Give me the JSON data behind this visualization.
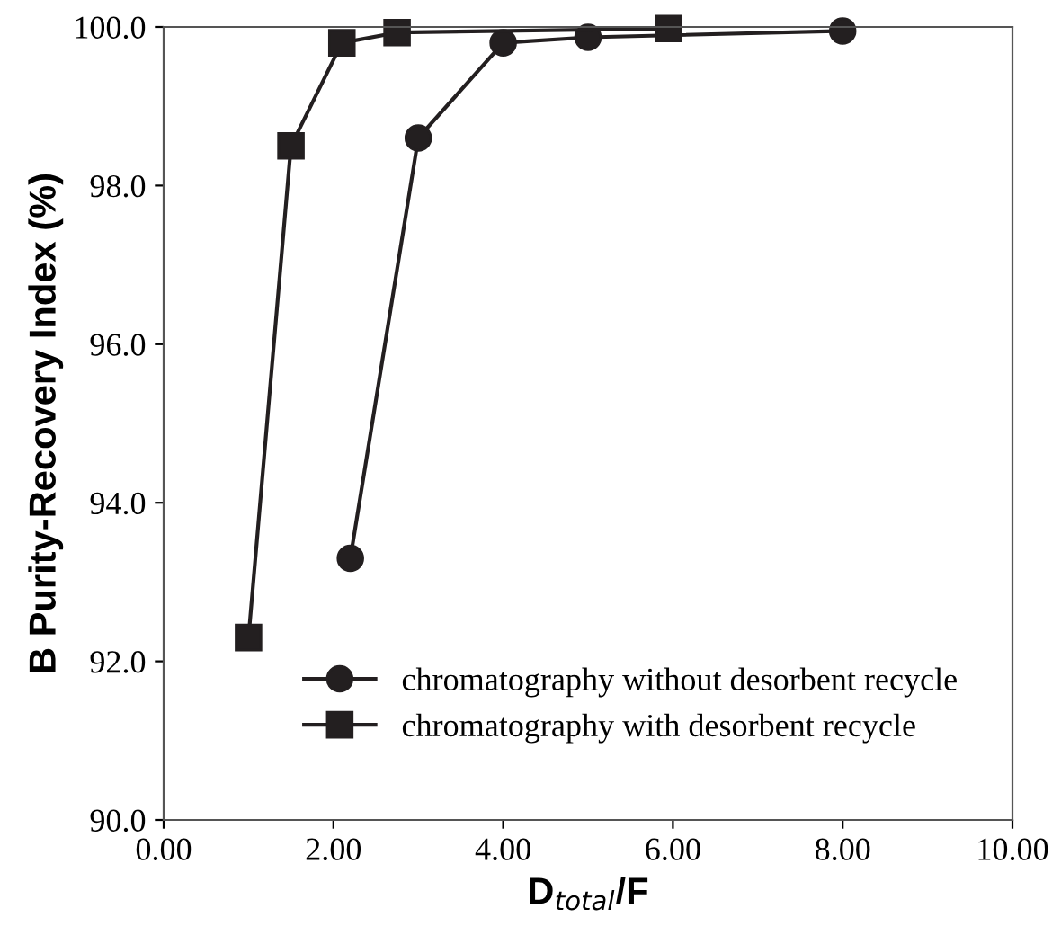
{
  "chart_data": {
    "type": "line",
    "xlabel": "D$_{total}$/F",
    "ylabel": "B Purity-Recovery Index (%)",
    "xlim": [
      0,
      10
    ],
    "xticks": [
      {
        "value": 0,
        "label": "0.00"
      },
      {
        "value": 2,
        "label": "2.00"
      },
      {
        "value": 4,
        "label": "4.00"
      },
      {
        "value": 6,
        "label": "6.00"
      },
      {
        "value": 8,
        "label": "8.00"
      },
      {
        "value": 10,
        "label": "10.00"
      }
    ],
    "ylim": [
      90,
      100
    ],
    "yticks": [
      {
        "value": 90,
        "label": "90.0"
      },
      {
        "value": 92,
        "label": "92.0"
      },
      {
        "value": 94,
        "label": "94.0"
      },
      {
        "value": 96,
        "label": "96.0"
      },
      {
        "value": 98,
        "label": "98.0"
      },
      {
        "value": 100,
        "label": "100.0"
      }
    ],
    "grid": false,
    "legend": "bottom right",
    "line_style": "solid",
    "series": [
      {
        "name": "chromatography without desorbent recycle",
        "color": "#231f20",
        "marker": "circle",
        "x": [
          2.2,
          3.0,
          4.0,
          5.0,
          8.0
        ],
        "values": [
          93.3,
          98.6,
          99.8,
          99.87,
          99.95
        ]
      },
      {
        "name": "chromatography with desorbent recycle",
        "color": "#231f20",
        "marker": "square",
        "x": [
          1.0,
          1.5,
          2.1,
          2.75,
          5.95
        ],
        "values": [
          92.3,
          98.5,
          99.8,
          99.93,
          99.98
        ]
      }
    ]
  }
}
